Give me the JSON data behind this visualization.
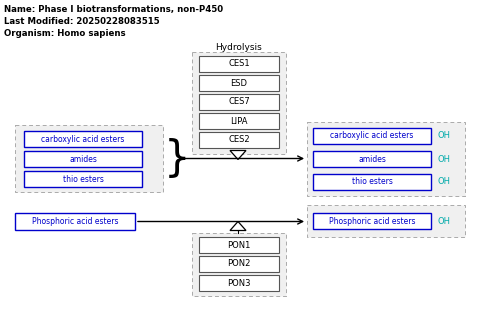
{
  "title_lines": [
    "Name: Phase I biotransformations, non-P450",
    "Last Modified: 20250228083515",
    "Organism: Homo sapiens"
  ],
  "hydrolysis_label": "Hydrolysis",
  "ces_enzymes": [
    "CES1",
    "ESD",
    "CES7",
    "LIPA",
    "CES2"
  ],
  "pon_enzymes": [
    "PON1",
    "PON2",
    "PON3"
  ],
  "substrates_group1": [
    "carboxylic acid esters",
    "amides",
    "thio esters"
  ],
  "products_group1": [
    "carboxylic acid esters",
    "amides",
    "thio esters"
  ],
  "substrate_group2": "Phosphoric acid esters",
  "product_group2": "Phosphoric acid esters",
  "oh_label": "OH",
  "box_border_color": "#0000cc",
  "dashed_border_color": "#aaaaaa",
  "enzyme_box_edge": "#555555",
  "enzyme_box_fill": "#ffffff",
  "substrate_box_fill": "#ffffff",
  "dashed_fill": "#f0f0f0",
  "text_color_blue": "#0000cc",
  "text_color_black": "#000000",
  "text_color_cyan": "#00aaaa",
  "arrow_color": "#000000",
  "fig_bg": "#ffffff"
}
